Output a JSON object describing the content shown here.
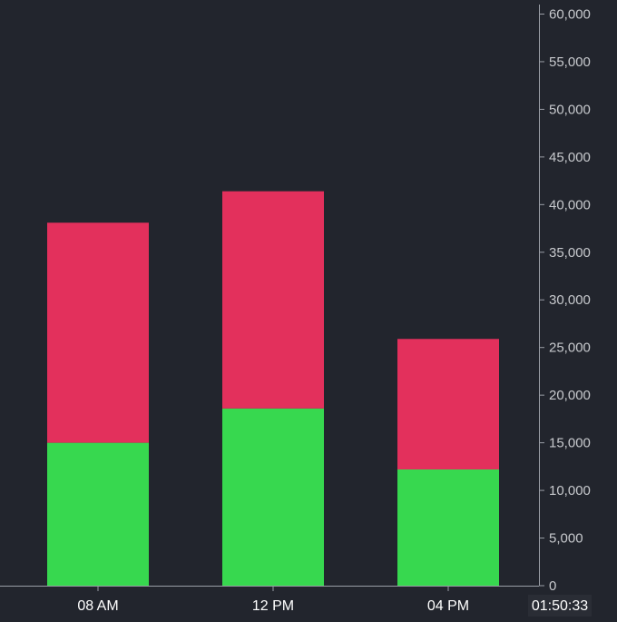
{
  "chart_data": {
    "type": "bar",
    "stacked": true,
    "categories": [
      "08 AM",
      "12 PM",
      "04 PM"
    ],
    "series": [
      {
        "key": "green",
        "values": [
          15000,
          18600,
          12200
        ],
        "color": "#37d84f"
      },
      {
        "key": "red",
        "values": [
          23100,
          22800,
          13700
        ],
        "color": "#e3305c"
      }
    ],
    "yaxis": {
      "position": "right",
      "ylim": [
        0,
        61000
      ],
      "ticks": [
        0,
        5000,
        10000,
        15000,
        20000,
        25000,
        30000,
        35000,
        40000,
        45000,
        50000,
        55000,
        60000
      ],
      "tick_labels": [
        "0",
        "5,000",
        "10,000",
        "15,000",
        "20,000",
        "25,000",
        "30,000",
        "35,000",
        "40,000",
        "45,000",
        "50,000",
        "55,000",
        "60,000"
      ]
    },
    "xlabel": "",
    "ylabel": "",
    "title": "",
    "current_time_label": "01:50:33",
    "grid": false,
    "legend": "none"
  },
  "colors": {
    "background": "#22252d",
    "axis": "#9a9ea6",
    "tick_text": "#c7c9cd",
    "x_text": "#ffffff",
    "clock_bg": "#2a2d35"
  }
}
